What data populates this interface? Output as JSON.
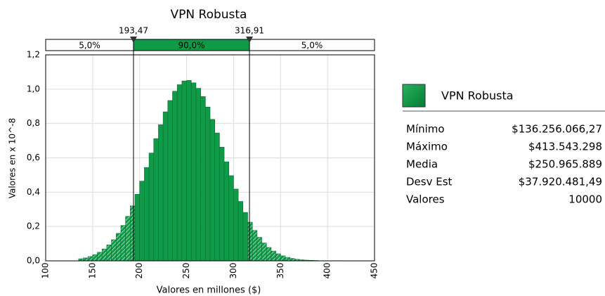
{
  "chart_data": {
    "type": "histogram",
    "title": "VPN Robusta",
    "xlabel": "Valores en millones ($)",
    "ylabel": "Valores en x 10^-8",
    "bins": [
      135,
      140,
      145,
      150,
      155,
      160,
      165,
      170,
      175,
      180,
      185,
      190,
      195,
      200,
      205,
      210,
      215,
      220,
      225,
      230,
      235,
      240,
      245,
      250,
      255,
      260,
      265,
      270,
      275,
      280,
      285,
      290,
      295,
      300,
      305,
      310,
      315,
      320,
      325,
      330,
      335,
      340,
      345,
      350,
      355,
      360,
      365,
      370,
      375,
      380,
      385,
      390,
      395,
      400,
      405,
      410,
      415
    ],
    "values": [
      0.012,
      0.017,
      0.025,
      0.036,
      0.05,
      0.069,
      0.093,
      0.123,
      0.16,
      0.206,
      0.259,
      0.32,
      0.388,
      0.464,
      0.544,
      0.628,
      0.712,
      0.793,
      0.868,
      0.934,
      0.988,
      1.026,
      1.048,
      1.051,
      1.037,
      1.005,
      0.957,
      0.896,
      0.824,
      0.745,
      0.662,
      0.577,
      0.496,
      0.418,
      0.346,
      0.282,
      0.225,
      0.177,
      0.137,
      0.104,
      0.078,
      0.057,
      0.041,
      0.029,
      0.02,
      0.014,
      0.009,
      0.006,
      0.004,
      0.003,
      0.002,
      0.001,
      0.001,
      0.001,
      0.001,
      0.001
    ],
    "color": "#0f9a48",
    "xlim": [
      100,
      450
    ],
    "xticks": [
      100,
      150,
      200,
      250,
      300,
      350,
      400,
      450
    ],
    "ylim": [
      0,
      1.2
    ],
    "yticks": [
      {
        "value": 0,
        "label": "0,0"
      },
      {
        "value": 0.2,
        "label": "0,2"
      },
      {
        "value": 0.4,
        "label": "0,4"
      },
      {
        "value": 0.6,
        "label": "0,6"
      },
      {
        "value": 0.8,
        "label": "0,8"
      },
      {
        "value": 1.0,
        "label": "1,0"
      },
      {
        "value": 1.2,
        "label": "1,2"
      }
    ],
    "grid": true,
    "delimiters": [
      {
        "value": 193.47,
        "label": "193,47"
      },
      {
        "value": 316.91,
        "label": "316,91"
      }
    ],
    "regions": {
      "values": [
        5,
        90,
        5
      ],
      "value_labels": [
        "5,0%",
        "90,0%",
        "5,0%"
      ]
    },
    "legend": {
      "name": "VPN Robusta",
      "stats": [
        {
          "label": "Mínimo",
          "value": "$136.256.066,27"
        },
        {
          "label": "Máximo",
          "value": "$413.543.298"
        },
        {
          "label": "Media",
          "value": "$250.965.889"
        },
        {
          "label": "Desv Est",
          "value": "$37.920.481,49"
        },
        {
          "label": "Valores",
          "value": "10000"
        }
      ]
    }
  }
}
